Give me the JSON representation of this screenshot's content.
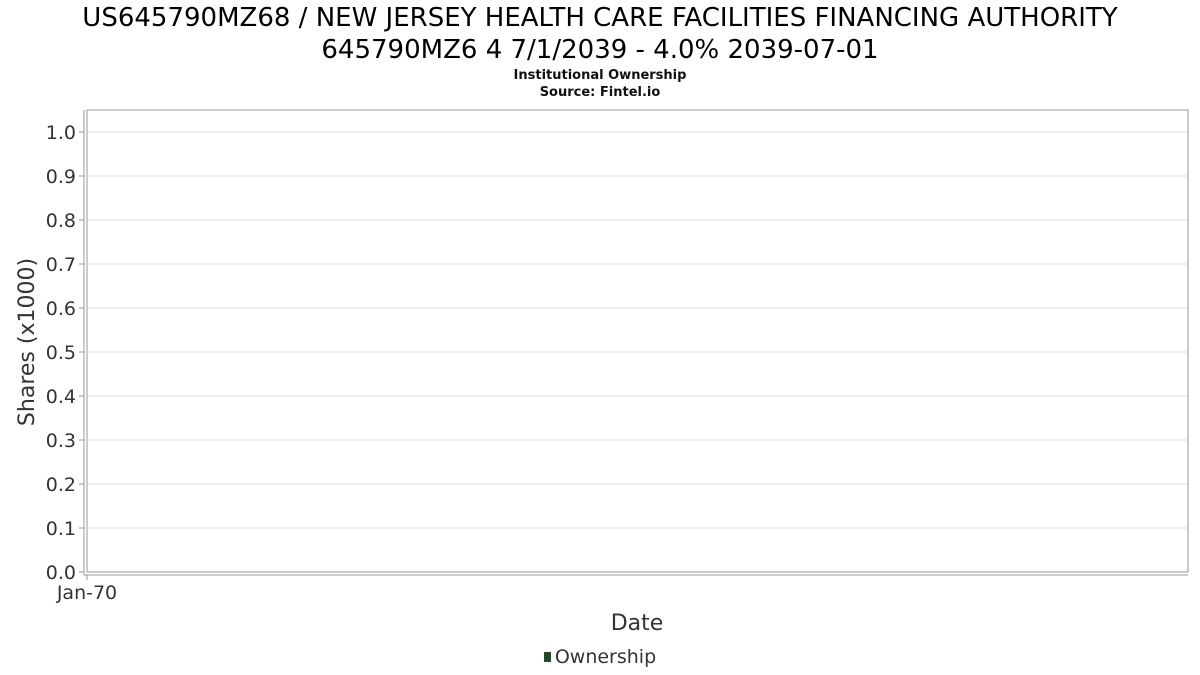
{
  "chart_data": {
    "type": "line",
    "title_line1": "US645790MZ68 / NEW JERSEY HEALTH CARE FACILITIES FINANCING AUTHORITY",
    "title_line2": "645790MZ6 4 7/1/2039 - 4.0% 2039-07-01",
    "subtitle": "Institutional Ownership",
    "source": "Source: Fintel.io",
    "xlabel": "Date",
    "ylabel": "Shares (x1000)",
    "ylim": [
      0,
      1.0
    ],
    "yticks": [
      "0.0",
      "0.1",
      "0.2",
      "0.3",
      "0.4",
      "0.5",
      "0.6",
      "0.7",
      "0.8",
      "0.9",
      "1.0"
    ],
    "xticks": [
      "Jan-70"
    ],
    "grid": true,
    "legend_position": "bottom-center",
    "series": [
      {
        "name": "Ownership",
        "color": "#1f4d2b",
        "x": [],
        "values": []
      }
    ]
  }
}
